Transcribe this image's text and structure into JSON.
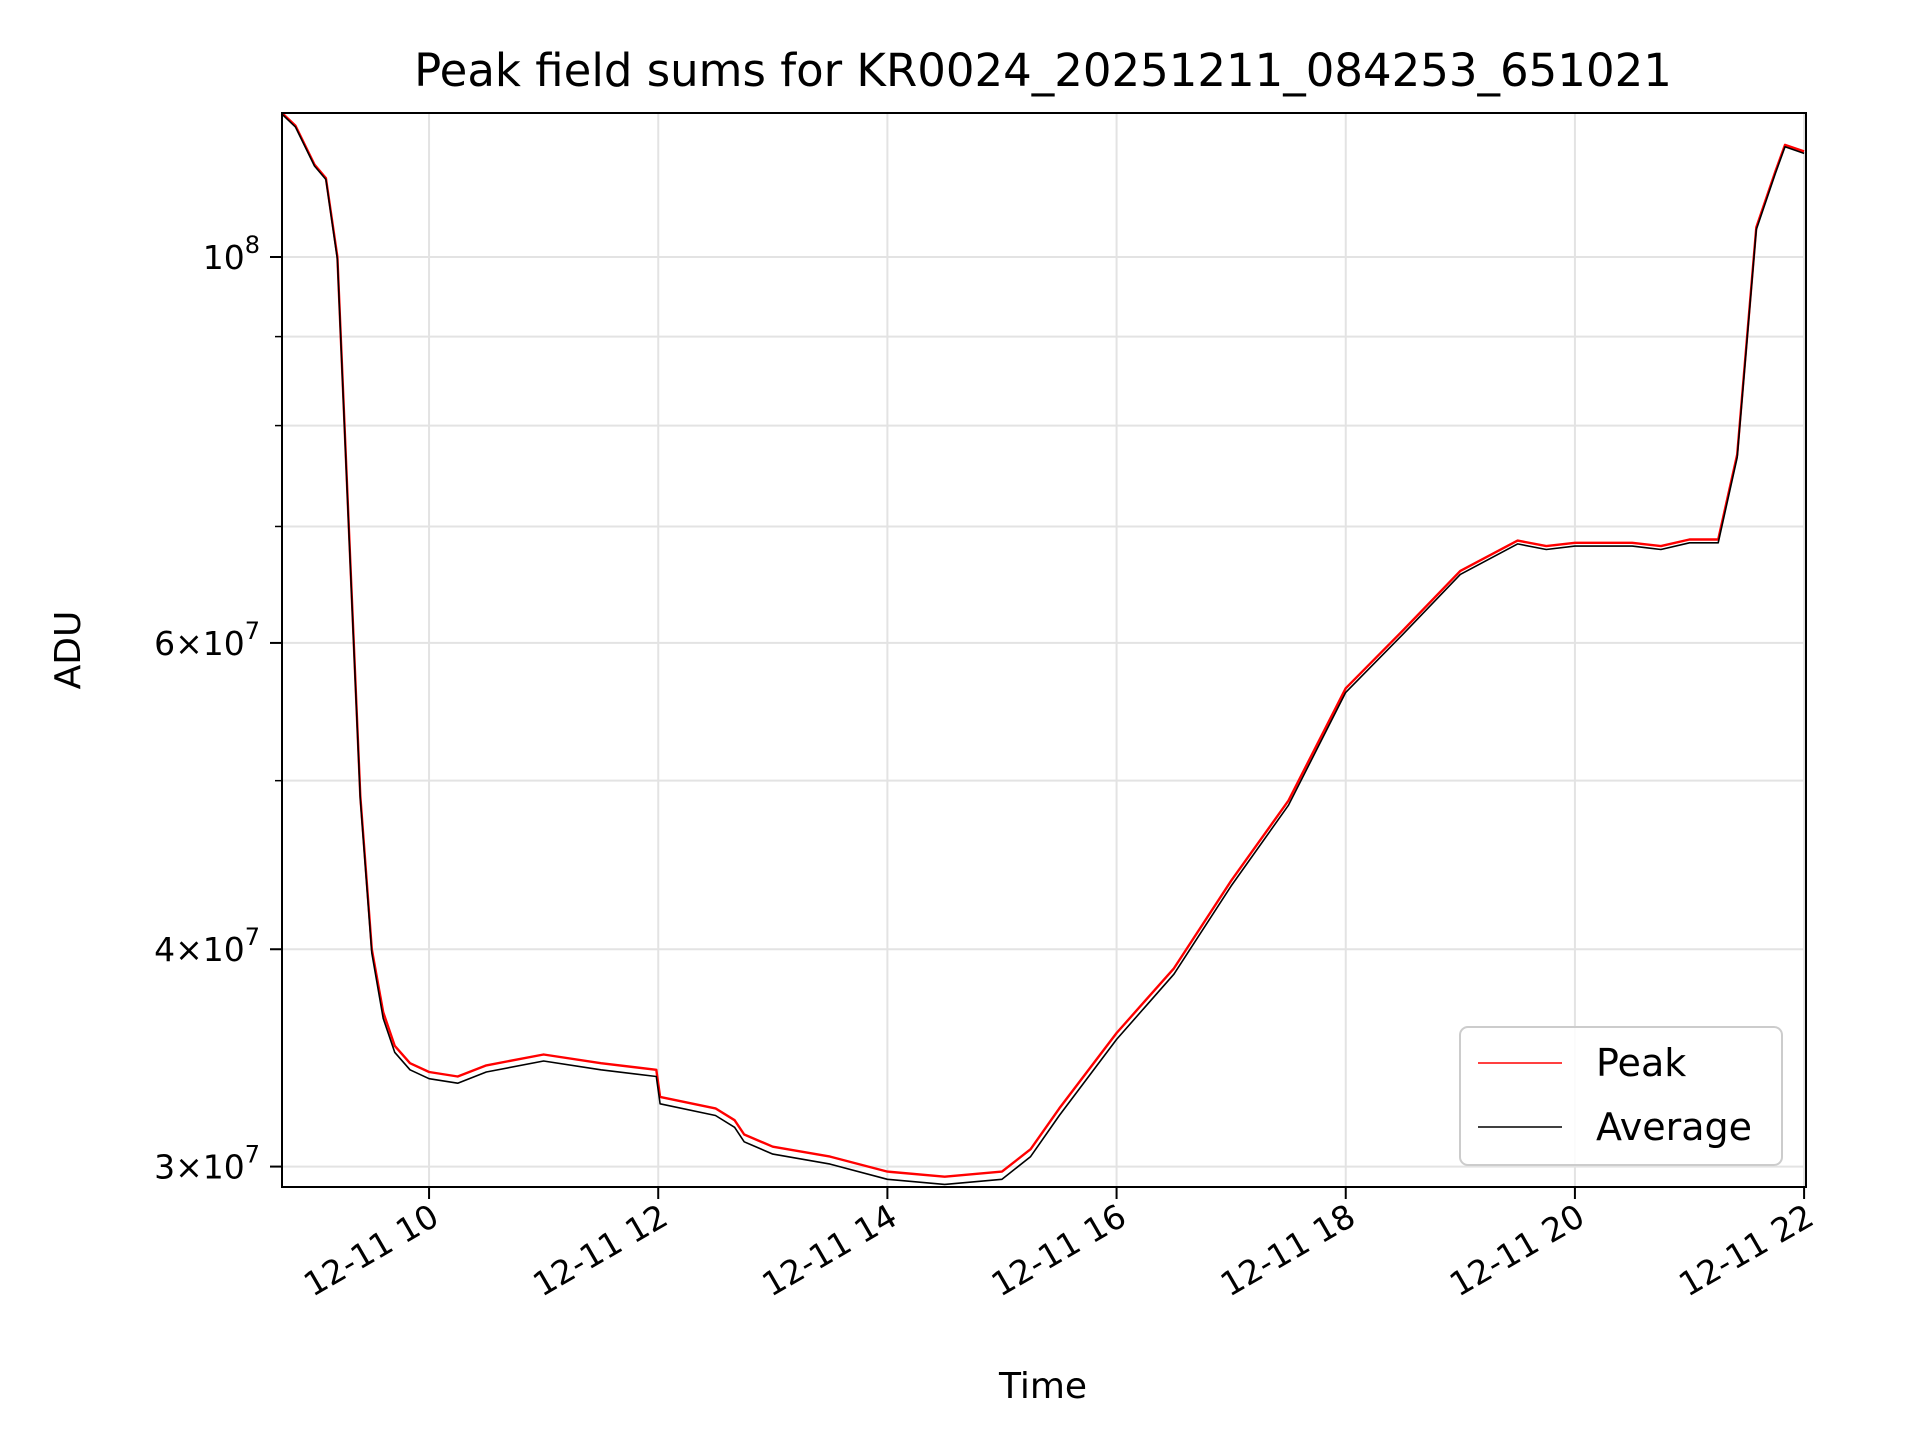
{
  "chart_data": {
    "type": "line",
    "title": "Peak field sums for KR0024_20251211_084253_651021",
    "xlabel": "Time",
    "ylabel": "ADU",
    "x_type": "datetime",
    "xlim": [
      "2025-12-11 08:43",
      "2025-12-11 22:01"
    ],
    "ylim": [
      29200000,
      121000000
    ],
    "y_scale": "log",
    "grid": true,
    "legend_position": "lower-right",
    "x_ticks": [
      {
        "value": "2025-12-11 10:00",
        "label": "12-11 10"
      },
      {
        "value": "2025-12-11 12:00",
        "label": "12-11 12"
      },
      {
        "value": "2025-12-11 14:00",
        "label": "12-11 14"
      },
      {
        "value": "2025-12-11 16:00",
        "label": "12-11 16"
      },
      {
        "value": "2025-12-11 18:00",
        "label": "12-11 18"
      },
      {
        "value": "2025-12-11 20:00",
        "label": "12-11 20"
      },
      {
        "value": "2025-12-11 22:00",
        "label": "12-11 22"
      }
    ],
    "y_ticks": [
      {
        "value": 30000000,
        "base": "3",
        "exp": "7"
      },
      {
        "value": 40000000,
        "base": "4",
        "exp": "7"
      },
      {
        "value": 60000000,
        "base": "6",
        "exp": "7"
      },
      {
        "value": 100000000,
        "base": "",
        "exp": "8"
      }
    ],
    "y_minor_ticks": [
      50000000,
      70000000,
      80000000,
      90000000
    ],
    "x": [
      "2025-12-11 08:43",
      "2025-12-11 08:50",
      "2025-12-11 09:00",
      "2025-12-11 09:06",
      "2025-12-11 09:12",
      "2025-12-11 09:18",
      "2025-12-11 09:24",
      "2025-12-11 09:30",
      "2025-12-11 09:36",
      "2025-12-11 09:42",
      "2025-12-11 09:50",
      "2025-12-11 10:00",
      "2025-12-11 10:15",
      "2025-12-11 10:30",
      "2025-12-11 11:00",
      "2025-12-11 11:30",
      "2025-12-11 11:59",
      "2025-12-11 12:01",
      "2025-12-11 12:30",
      "2025-12-11 12:40",
      "2025-12-11 12:45",
      "2025-12-11 13:00",
      "2025-12-11 13:30",
      "2025-12-11 14:00",
      "2025-12-11 14:30",
      "2025-12-11 15:00",
      "2025-12-11 15:15",
      "2025-12-11 15:30",
      "2025-12-11 16:00",
      "2025-12-11 16:30",
      "2025-12-11 17:00",
      "2025-12-11 17:30",
      "2025-12-11 18:00",
      "2025-12-11 18:30",
      "2025-12-11 19:00",
      "2025-12-11 19:30",
      "2025-12-11 19:45",
      "2025-12-11 20:00",
      "2025-12-11 20:30",
      "2025-12-11 20:45",
      "2025-12-11 21:00",
      "2025-12-11 21:15",
      "2025-12-11 21:25",
      "2025-12-11 21:35",
      "2025-12-11 21:45",
      "2025-12-11 21:50",
      "2025-12-11 22:00"
    ],
    "series": [
      {
        "name": "Peak",
        "color": "#ff0000",
        "values": [
          121000000,
          119000000,
          113000000,
          111000000,
          100000000,
          70000000,
          49000000,
          40000000,
          36800000,
          35200000,
          34400000,
          34000000,
          33800000,
          34300000,
          34800000,
          34400000,
          34100000,
          32900000,
          32400000,
          31900000,
          31300000,
          30800000,
          30400000,
          29800000,
          29600000,
          29800000,
          30700000,
          32400000,
          35800000,
          39000000,
          43800000,
          48700000,
          56500000,
          61000000,
          66000000,
          68700000,
          68200000,
          68500000,
          68500000,
          68200000,
          68800000,
          68800000,
          77000000,
          104000000,
          112000000,
          116000000,
          115000000
        ]
      },
      {
        "name": "Average",
        "color": "#000000",
        "values": [
          120800000,
          118800000,
          112800000,
          110800000,
          99700000,
          69700000,
          48800000,
          39800000,
          36500000,
          34900000,
          34100000,
          33700000,
          33500000,
          34000000,
          34500000,
          34100000,
          33800000,
          32600000,
          32100000,
          31600000,
          31000000,
          30500000,
          30100000,
          29500000,
          29300000,
          29500000,
          30400000,
          32100000,
          35500000,
          38700000,
          43500000,
          48400000,
          56200000,
          60700000,
          65700000,
          68400000,
          67900000,
          68200000,
          68200000,
          67900000,
          68500000,
          68500000,
          76700000,
          103700000,
          111700000,
          115700000,
          114700000
        ]
      }
    ]
  }
}
